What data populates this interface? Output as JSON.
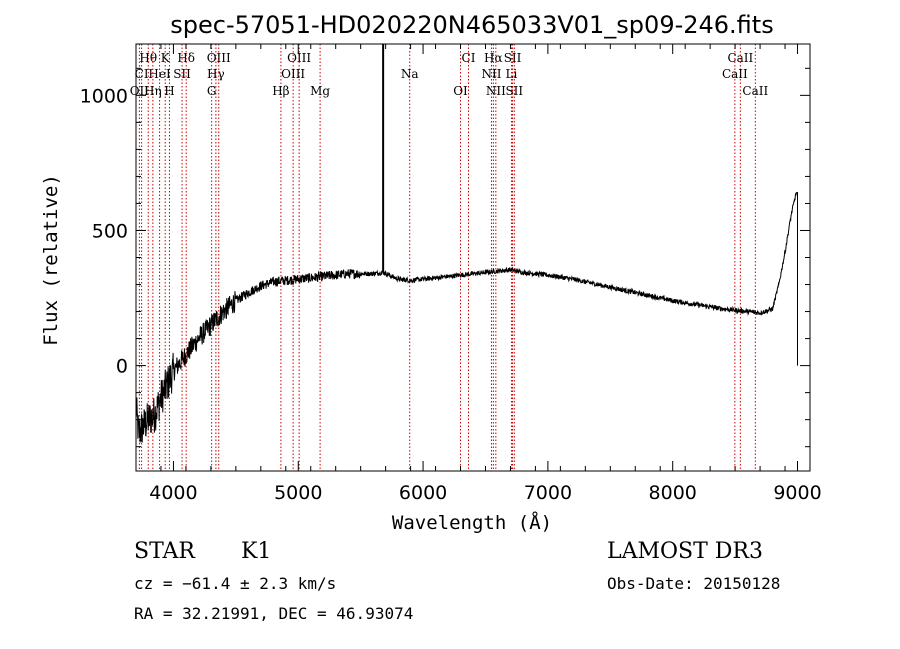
{
  "chart_data": {
    "type": "line",
    "title": "spec-57051-HD020220N465033V01_sp09-246.fits",
    "xlabel": "Wavelength (Å)",
    "ylabel": "Flux (relative)",
    "xlim": [
      3700,
      9100
    ],
    "ylim": [
      -390,
      1190
    ],
    "x_ticks": [
      4000,
      5000,
      6000,
      7000,
      8000,
      9000
    ],
    "x_tick_labels": [
      "4000",
      "5000",
      "6000",
      "7000",
      "8000",
      "9000"
    ],
    "y_ticks": [
      0,
      500,
      1000
    ],
    "y_tick_labels": [
      "0",
      "500",
      "1000"
    ],
    "line_color": "#000000",
    "marker_color": "#cc0000",
    "spectrum_anchors": {
      "x": [
        3700,
        3720,
        3750,
        3800,
        3850,
        3900,
        3950,
        4000,
        4050,
        4100,
        4200,
        4300,
        4400,
        4500,
        4600,
        4700,
        4800,
        4900,
        5000,
        5200,
        5400,
        5600,
        5680,
        5800,
        5900,
        6000,
        6200,
        6400,
        6600,
        6700,
        6800,
        7000,
        7200,
        7400,
        7600,
        7800,
        8000,
        8200,
        8400,
        8600,
        8700,
        8800,
        8850,
        8900,
        8950,
        8990,
        9000
      ],
      "y": [
        -150,
        -250,
        -230,
        -200,
        -180,
        -120,
        -70,
        -20,
        10,
        40,
        100,
        150,
        200,
        240,
        270,
        295,
        310,
        315,
        320,
        330,
        340,
        340,
        345,
        320,
        315,
        320,
        330,
        340,
        350,
        355,
        345,
        335,
        320,
        300,
        280,
        260,
        240,
        225,
        210,
        200,
        195,
        210,
        300,
        420,
        560,
        640,
        0
      ]
    },
    "spike": {
      "x": 5680,
      "y": 1190
    },
    "line_markers": [
      {
        "label": "Hθ",
        "x": 3798,
        "row": 1
      },
      {
        "label": "K",
        "x": 3934,
        "row": 1
      },
      {
        "label": "Hδ",
        "x": 4102,
        "row": 1
      },
      {
        "label": "OIII",
        "x": 4363,
        "row": 1
      },
      {
        "label": "OIII",
        "x": 5007,
        "row": 1
      },
      {
        "label": "CI",
        "x": 6364,
        "row": 1
      },
      {
        "label": "Hα",
        "x": 6563,
        "row": 1
      },
      {
        "label": "SII",
        "x": 6717,
        "row": 1
      },
      {
        "label": "CaII",
        "x": 8542,
        "row": 1
      },
      {
        "label": "CI",
        "x": 3745,
        "row": 2
      },
      {
        "label": "HeI",
        "x": 3889,
        "row": 2
      },
      {
        "label": "SII",
        "x": 4069,
        "row": 2
      },
      {
        "label": "Hγ",
        "x": 4340,
        "row": 2
      },
      {
        "label": "OIII",
        "x": 4959,
        "row": 2
      },
      {
        "label": "Na",
        "x": 5893,
        "row": 2
      },
      {
        "label": "NII",
        "x": 6548,
        "row": 2
      },
      {
        "label": "Li",
        "x": 6708,
        "row": 2
      },
      {
        "label": "CaII",
        "x": 8498,
        "row": 2
      },
      {
        "label": "OII",
        "x": 3727,
        "row": 3
      },
      {
        "label": "Hη",
        "x": 3835,
        "row": 3
      },
      {
        "label": "H",
        "x": 3968,
        "row": 3
      },
      {
        "label": "G",
        "x": 4306,
        "row": 3
      },
      {
        "label": "Hβ",
        "x": 4861,
        "row": 3
      },
      {
        "label": "Mg",
        "x": 5175,
        "row": 3
      },
      {
        "label": "OI",
        "x": 6300,
        "row": 3
      },
      {
        "label": "NII",
        "x": 6583,
        "row": 3
      },
      {
        "label": "SII",
        "x": 6731,
        "row": 3
      },
      {
        "label": "CaII",
        "x": 8662,
        "row": 3
      }
    ]
  },
  "info": {
    "object_type": "STAR",
    "subclass": "K1",
    "survey": "LAMOST DR3",
    "redshift": "cz = −61.4 ± 2.3 km/s",
    "obs_date": "Obs-Date: 20150128",
    "coords": "RA =  32.21991, DEC =  46.93074"
  }
}
